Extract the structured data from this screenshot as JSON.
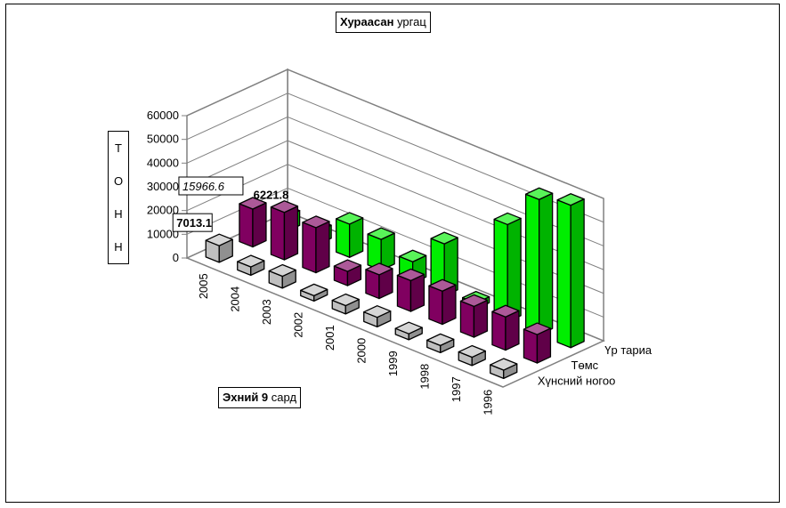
{
  "chart_data": {
    "type": "bar",
    "title_bold": "Хураасан",
    "title_rest": "ургац",
    "subtitle_bold": "Эхний 9",
    "subtitle_rest": "сард",
    "ylabel_letters": [
      "Т",
      "О",
      "Н",
      "Н"
    ],
    "categories": [
      "2005",
      "2004",
      "2003",
      "2002",
      "2001",
      "2000",
      "1999",
      "1998",
      "1997",
      "1996"
    ],
    "yticks": [
      "0",
      "10000",
      "20000",
      "30000",
      "40000",
      "50000",
      "60000"
    ],
    "ylim": [
      0,
      60000
    ],
    "series": [
      {
        "name": "Хүнсний ногоо",
        "color": "#c0c0c0",
        "values": [
          7013.1,
          3500,
          5000,
          2000,
          3500,
          4000,
          2500,
          3000,
          3500,
          3500
        ]
      },
      {
        "name": "Төмс",
        "color": "#800060",
        "values": [
          15966.6,
          20000,
          19000,
          6000,
          10000,
          13000,
          14000,
          13000,
          14000,
          12000
        ]
      },
      {
        "name": "Үр тариа",
        "color": "#00ee00",
        "values": [
          6221.8,
          5500,
          14000,
          13000,
          9000,
          22000,
          2500,
          41000,
          57000,
          60000
        ]
      }
    ],
    "annotations": {
      "label_2005_gray": "7013.1",
      "label_2005_purple": "15966.6",
      "label_2005_green": "6221.8"
    },
    "grid": true
  }
}
